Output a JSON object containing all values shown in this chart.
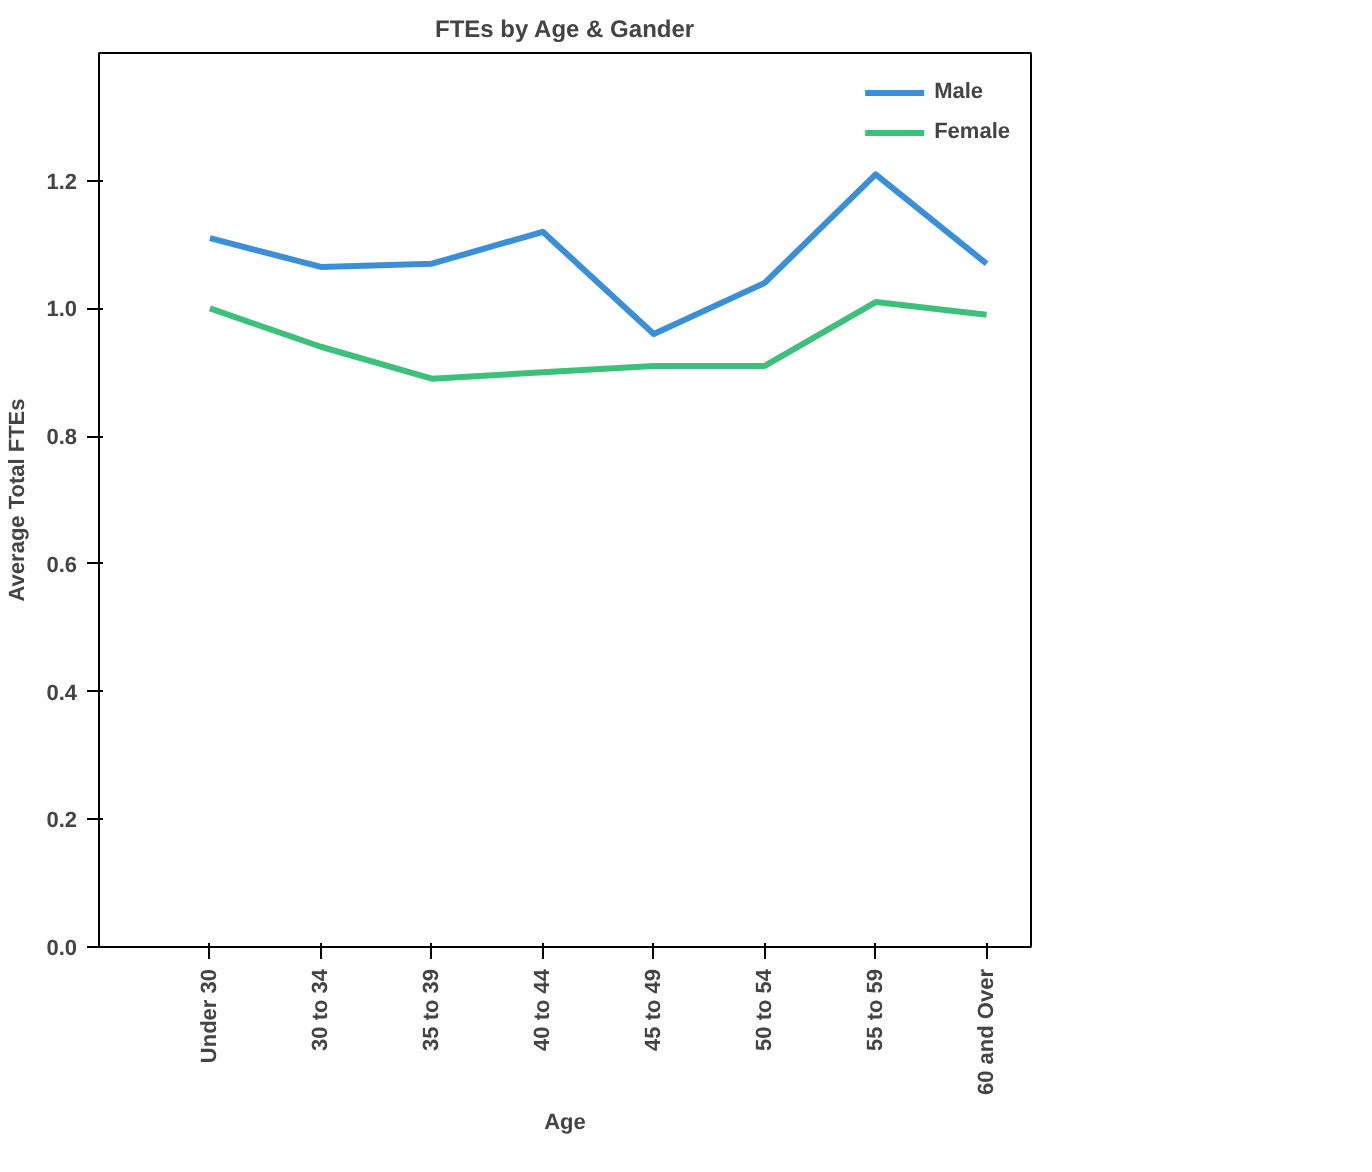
{
  "chart_data": {
    "type": "line",
    "title": "FTEs by Age & Gander",
    "xlabel": "Age",
    "ylabel": "Average Total FTEs",
    "categories": [
      "Under 30",
      "30 to 34",
      "35 to 39",
      "40 to 44",
      "45 to 49",
      "50 to 54",
      "55 to 59",
      "60 and Over"
    ],
    "series": [
      {
        "name": "Male",
        "color": "#3a8fd6",
        "values": [
          1.11,
          1.065,
          1.07,
          1.12,
          0.96,
          1.04,
          1.21,
          1.07
        ]
      },
      {
        "name": "Female",
        "color": "#3cc07a",
        "values": [
          1.0,
          0.94,
          0.89,
          0.9,
          0.91,
          0.91,
          1.01,
          0.99
        ]
      }
    ],
    "ylim": [
      0,
      1.4
    ],
    "yticks": [
      {
        "value": 0,
        "label": "0.0"
      },
      0.2,
      0.4,
      0.6,
      0.8,
      {
        "value": 1,
        "label": "1.0"
      },
      1.2
    ],
    "grid": false,
    "legend": "top right",
    "marker": "none",
    "line_style": "solid"
  }
}
